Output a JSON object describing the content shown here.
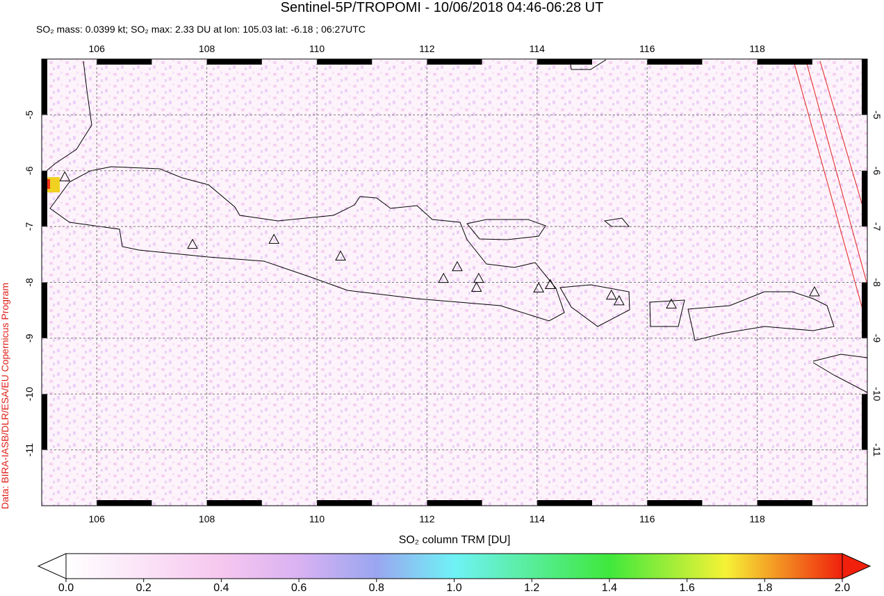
{
  "header": {
    "title": "Sentinel-5P/TROPOMI - 10/06/2018 04:46-06:28 UT",
    "subtitle": "SO₂ mass: 0.0399 kt; SO₂ max: 2.33 DU at lon: 105.03 lat: -6.18 ; 06:27UTC"
  },
  "credit": "Data: BIRA-IASB/DLR/ESA/EU Copernicus Program",
  "map": {
    "xlim": [
      105,
      120
    ],
    "ylim": [
      -12,
      -4
    ],
    "xticks": [
      106,
      108,
      110,
      112,
      114,
      116,
      118
    ],
    "yticks": [
      -5,
      -6,
      -7,
      -8,
      -9,
      -10,
      -11
    ],
    "volcanoes": [
      {
        "lon": 105.42,
        "lat": -6.12
      },
      {
        "lon": 107.74,
        "lat": -7.33
      },
      {
        "lon": 109.22,
        "lat": -7.24
      },
      {
        "lon": 110.43,
        "lat": -7.54
      },
      {
        "lon": 112.3,
        "lat": -7.94
      },
      {
        "lon": 112.55,
        "lat": -7.73
      },
      {
        "lon": 112.94,
        "lat": -7.94
      },
      {
        "lon": 112.9,
        "lat": -8.1
      },
      {
        "lon": 114.03,
        "lat": -8.11
      },
      {
        "lon": 114.24,
        "lat": -8.05
      },
      {
        "lon": 115.35,
        "lat": -8.24
      },
      {
        "lon": 115.49,
        "lat": -8.34
      },
      {
        "lon": 116.44,
        "lat": -8.4
      },
      {
        "lon": 119.04,
        "lat": -8.18
      }
    ]
  },
  "colorbar": {
    "label": "SO₂ column TRM [DU]",
    "lim": [
      0,
      2
    ],
    "ticks": [
      {
        "value": 0,
        "label": "0.0"
      },
      {
        "value": 0.2,
        "label": "0.2"
      },
      {
        "value": 0.4,
        "label": "0.4"
      },
      {
        "value": 0.6,
        "label": "0.6"
      },
      {
        "value": 0.8,
        "label": "0.8"
      },
      {
        "value": 1,
        "label": "1.0"
      },
      {
        "value": 1.2,
        "label": "1.2"
      },
      {
        "value": 1.4,
        "label": "1.4"
      },
      {
        "value": 1.6,
        "label": "1.6"
      },
      {
        "value": 1.8,
        "label": "1.8"
      },
      {
        "value": 2,
        "label": "2.0"
      }
    ]
  }
}
